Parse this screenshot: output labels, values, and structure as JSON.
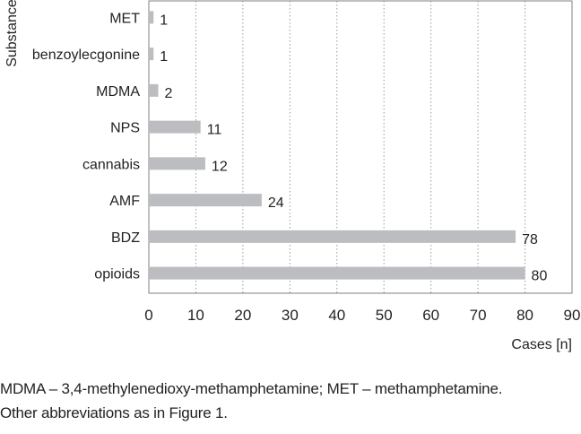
{
  "chart_data": {
    "type": "bar",
    "orientation": "horizontal",
    "categories": [
      "MET",
      "benzoylecgonine",
      "MDMA",
      "NPS",
      "cannabis",
      "AMF",
      "BDZ",
      "opioids"
    ],
    "values": [
      1,
      1,
      2,
      11,
      12,
      24,
      78,
      80
    ],
    "data_labels": [
      "1",
      "1",
      "2",
      "11",
      "12",
      "24",
      "78",
      "80"
    ],
    "xlabel": "Cases [n]",
    "ylabel": "Substance",
    "xlim": [
      0,
      90
    ],
    "xticks": [
      "0",
      "10",
      "20",
      "30",
      "40",
      "50",
      "60",
      "70",
      "80",
      "90"
    ],
    "grid": "vertical dotted",
    "bar_color": "#bcbdc0",
    "gridline_color": "#9a9a9a",
    "frame_color": "#808080"
  },
  "footnote": {
    "line1": "MDMA – 3,4-methylenedioxy-methamphetamine; MET – methamphetamine.",
    "line2": "Other abbreviations as in Figure 1."
  }
}
